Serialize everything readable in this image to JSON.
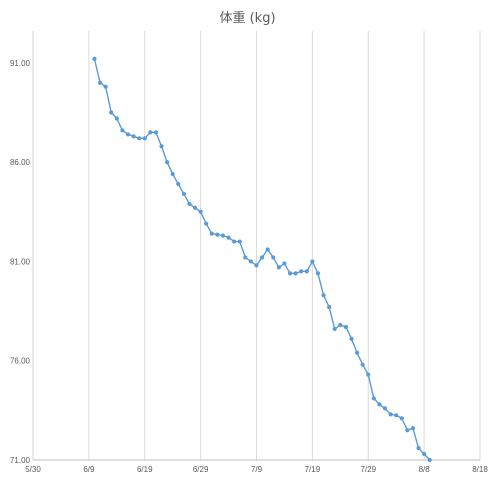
{
  "chart_data": {
    "type": "line",
    "title": "体重 (kg)",
    "xlabel": "",
    "ylabel": "",
    "x_tick_labels": [
      "5/30",
      "6/9",
      "6/19",
      "6/29",
      "7/9",
      "7/19",
      "7/29",
      "8/8",
      "8/18"
    ],
    "y_tick_labels": [
      "71.00",
      "76.00",
      "81.00",
      "86.00",
      "91.00"
    ],
    "x_start": "2000-05-30",
    "xlim_days": [
      0,
      80
    ],
    "ylim": [
      71,
      92
    ],
    "grid": "vertical",
    "legend": "none",
    "series_color": "#5b9bd5",
    "series": [
      {
        "points": [
          [
            11,
            91.2
          ],
          [
            12,
            90.0
          ],
          [
            13,
            89.8
          ],
          [
            14,
            88.5
          ],
          [
            15,
            88.2
          ],
          [
            16,
            87.6
          ],
          [
            17,
            87.4
          ],
          [
            18,
            87.3
          ],
          [
            19,
            87.2
          ],
          [
            20,
            87.2
          ],
          [
            21,
            87.5
          ],
          [
            22,
            87.5
          ],
          [
            23,
            86.8
          ],
          [
            24,
            86.0
          ],
          [
            25,
            85.4
          ],
          [
            26,
            84.9
          ],
          [
            27,
            84.4
          ],
          [
            28,
            83.9
          ],
          [
            29,
            83.7
          ],
          [
            30,
            83.5
          ],
          [
            31,
            82.9
          ],
          [
            32,
            82.4
          ],
          [
            33,
            82.35
          ],
          [
            34,
            82.3
          ],
          [
            35,
            82.2
          ],
          [
            36,
            82.0
          ],
          [
            37,
            82.0
          ],
          [
            38,
            81.2
          ],
          [
            39,
            81.0
          ],
          [
            40,
            80.8
          ],
          [
            41,
            81.2
          ],
          [
            42,
            81.6
          ],
          [
            43,
            81.2
          ],
          [
            44,
            80.7
          ],
          [
            45,
            80.9
          ],
          [
            46,
            80.4
          ],
          [
            47,
            80.4
          ],
          [
            48,
            80.5
          ],
          [
            49,
            80.5
          ],
          [
            50,
            81.0
          ],
          [
            51,
            80.4
          ],
          [
            52,
            79.3
          ],
          [
            53,
            78.7
          ],
          [
            54,
            77.6
          ],
          [
            55,
            77.8
          ],
          [
            56,
            77.7
          ],
          [
            57,
            77.1
          ],
          [
            58,
            76.4
          ],
          [
            59,
            75.8
          ],
          [
            60,
            75.3
          ],
          [
            61,
            74.1
          ],
          [
            62,
            73.8
          ],
          [
            63,
            73.6
          ],
          [
            64,
            73.3
          ],
          [
            65,
            73.25
          ],
          [
            66,
            73.1
          ],
          [
            67,
            72.5
          ],
          [
            68,
            72.6
          ],
          [
            69,
            71.6
          ],
          [
            70,
            71.3
          ],
          [
            71,
            71.0
          ]
        ]
      }
    ]
  }
}
